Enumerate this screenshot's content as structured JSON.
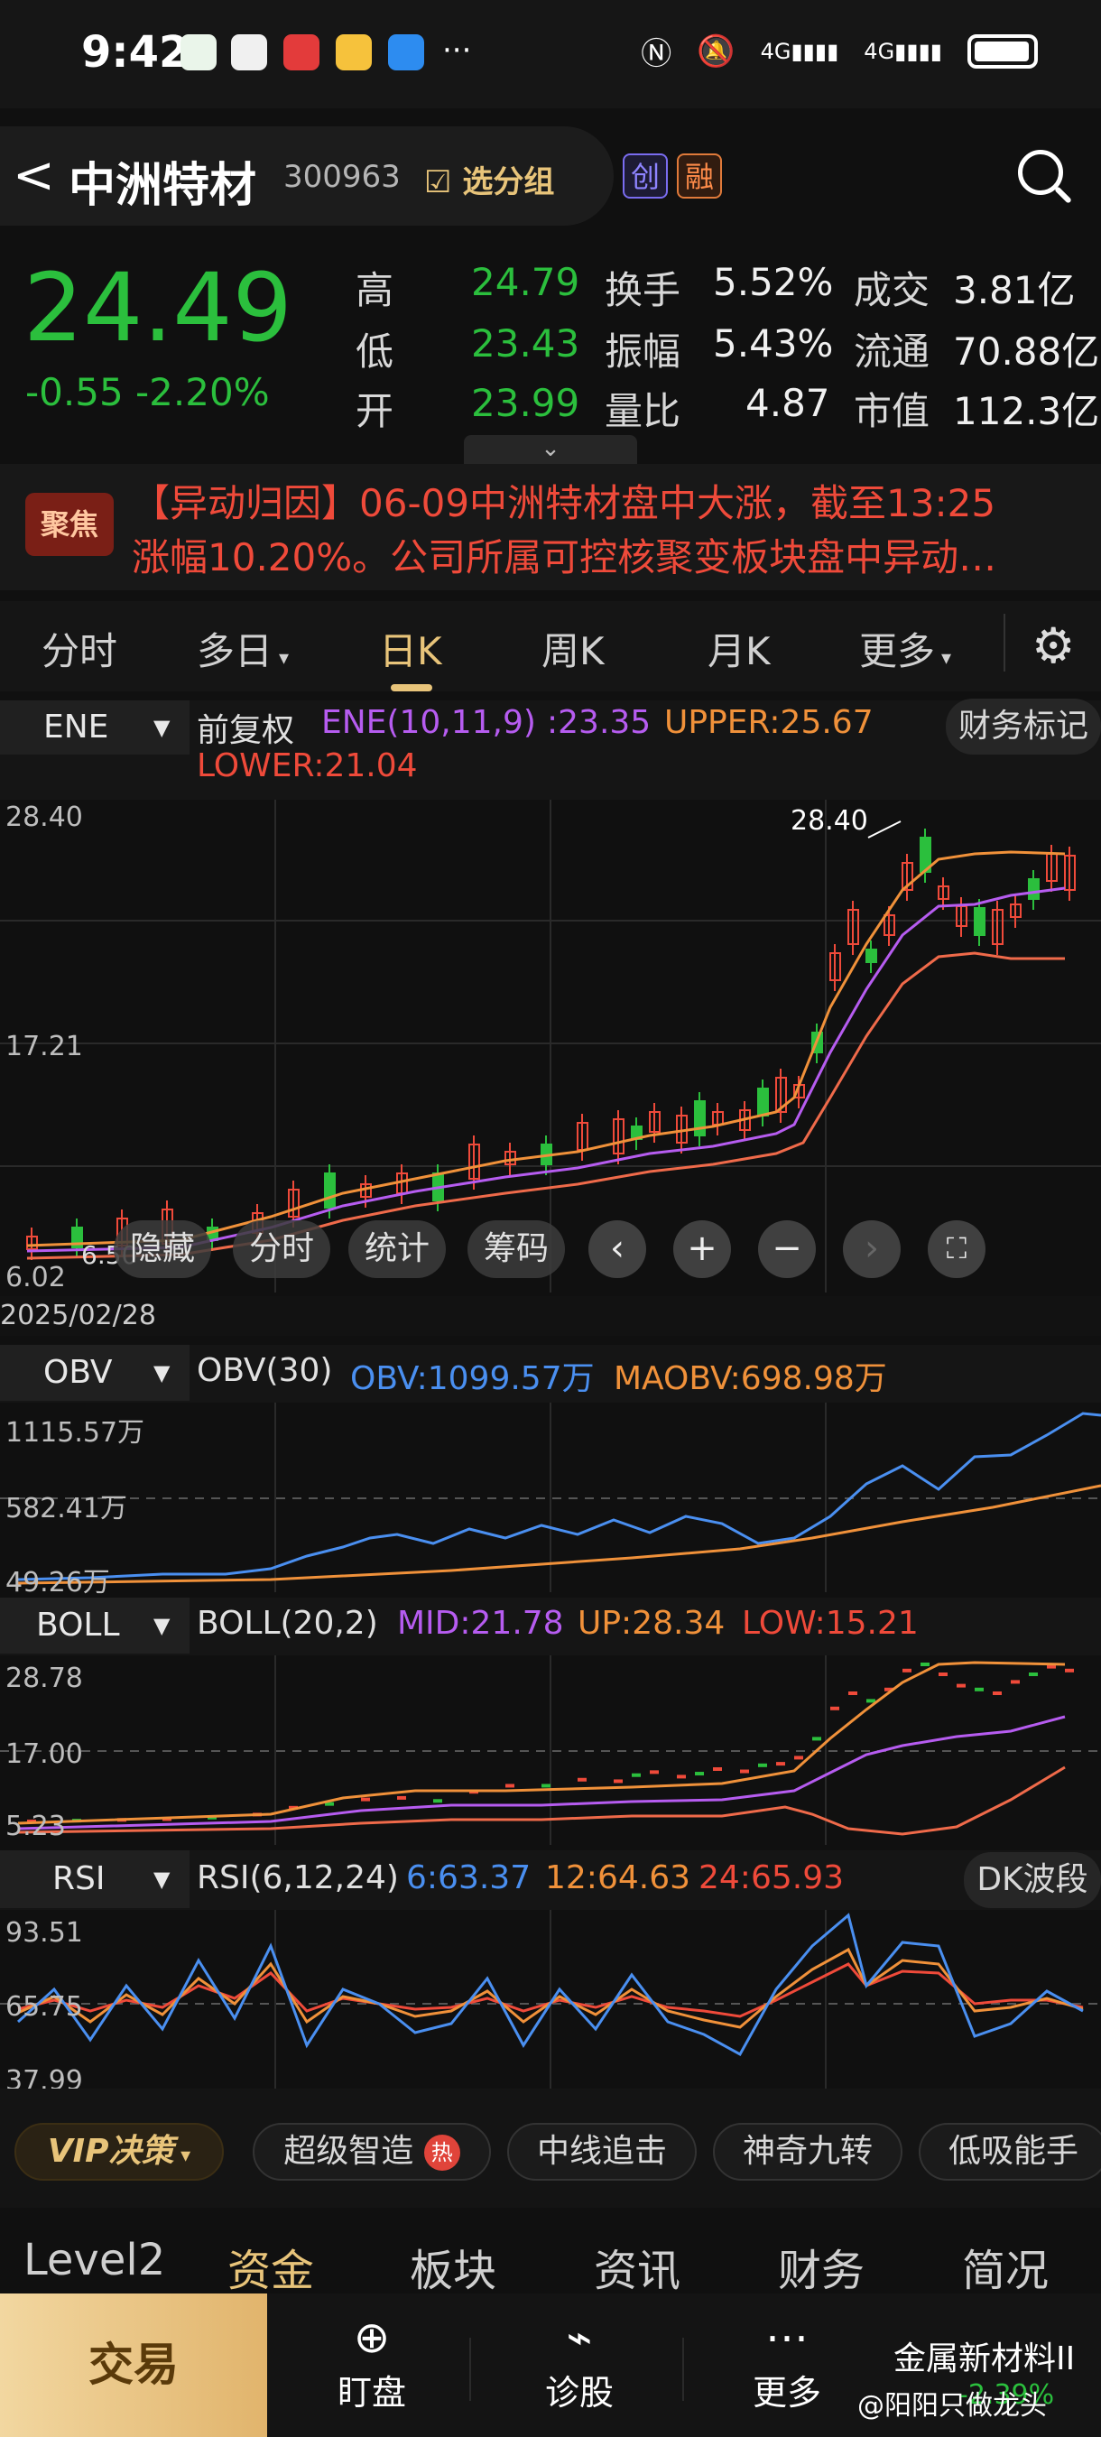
{
  "status_bar": {
    "time": "9:42",
    "dots": "···",
    "net1": "4G",
    "net2": "4G"
  },
  "header": {
    "back": "<",
    "name": "中洲特材",
    "code": "300963",
    "group_btn": "选分组",
    "badge1": "创",
    "badge2": "融"
  },
  "quote": {
    "price": "24.49",
    "change": "-0.55",
    "change_pct": "-2.20%",
    "high_label": "高",
    "high": "24.79",
    "low_label": "低",
    "low": "23.43",
    "open_label": "开",
    "open": "23.99",
    "turnover_label": "换手",
    "turnover": "5.52%",
    "amplitude_label": "振幅",
    "amplitude": "5.43%",
    "vol_ratio_label": "量比",
    "vol_ratio": "4.87",
    "deal_label": "成交",
    "deal": "3.81亿",
    "float_label": "流通",
    "float": "70.88亿",
    "mcap_label": "市值",
    "mcap": "112.3亿"
  },
  "news": {
    "tag": "聚焦",
    "line1": "【异动归因】06-09中洲特材盘中大涨，截至13:25",
    "line2": "涨幅10.20%。公司所属可控核聚变板块盘中异动…"
  },
  "tabs": {
    "t1": "分时",
    "t2": "多日",
    "t3": "日K",
    "t4": "周K",
    "t5": "月K",
    "t6": "更多"
  },
  "ene": {
    "select": "ENE",
    "fq": "前复权",
    "label": "ENE(10,11,9)",
    "value": ":23.35",
    "upper": "UPPER:25.67",
    "lower": "LOWER:21.04",
    "fin_mark": "财务标记",
    "y_top": "28.40",
    "y_mid": "17.21",
    "y_bot": "6.02",
    "hi_label": "28.40",
    "lo_label": "6.50",
    "date": "2025/02/28"
  },
  "controls": {
    "hide": "隐藏",
    "fenshi": "分时",
    "stats": "统计",
    "chips": "筹码",
    "left": "‹",
    "plus": "+",
    "minus": "−",
    "right": "›",
    "full": "⛶"
  },
  "obv": {
    "select": "OBV",
    "label": "OBV(30)",
    "obv": "OBV:1099.57万",
    "maobv": "MAOBV:698.98万",
    "y_top": "1115.57万",
    "y_mid": "582.41万",
    "y_bot": "49.26万"
  },
  "boll": {
    "select": "BOLL",
    "label": "BOLL(20,2)",
    "mid": "MID:21.78",
    "up": "UP:28.34",
    "low": "LOW:15.21",
    "y_top": "28.78",
    "y_mid": "17.00",
    "y_bot": "5.23"
  },
  "rsi": {
    "select": "RSI",
    "label": "RSI(6,12,24)",
    "r6": "6:63.37",
    "r12": "12:64.63",
    "r24": "24:65.93",
    "dk": "DK波段",
    "y_top": "93.51",
    "y_mid": "65.75",
    "y_bot": "37.99"
  },
  "features": {
    "vip": "VIP决策",
    "f1": "超级智造",
    "hot": "热",
    "f2": "中线追击",
    "f3": "神奇九转",
    "f4": "低吸能手"
  },
  "bottom_tabs": {
    "b1": "Level2",
    "b2": "资金",
    "b3": "板块",
    "b4": "资讯",
    "b5": "财务",
    "b6": "简况"
  },
  "nav": {
    "trade": "交易",
    "n1": "盯盘",
    "n2": "诊股",
    "n3": "更多",
    "sector": "金属新材料II",
    "sector_chg": "-2.39%",
    "watermark": "@阳阳只做龙头"
  },
  "colors": {
    "up": "#ef4a3a",
    "down": "#2bbf3d",
    "accent": "#e8c47a",
    "ene_mid": "#b65cf0",
    "ene_up": "#f0913a",
    "obv": "#4a8ff0"
  }
}
